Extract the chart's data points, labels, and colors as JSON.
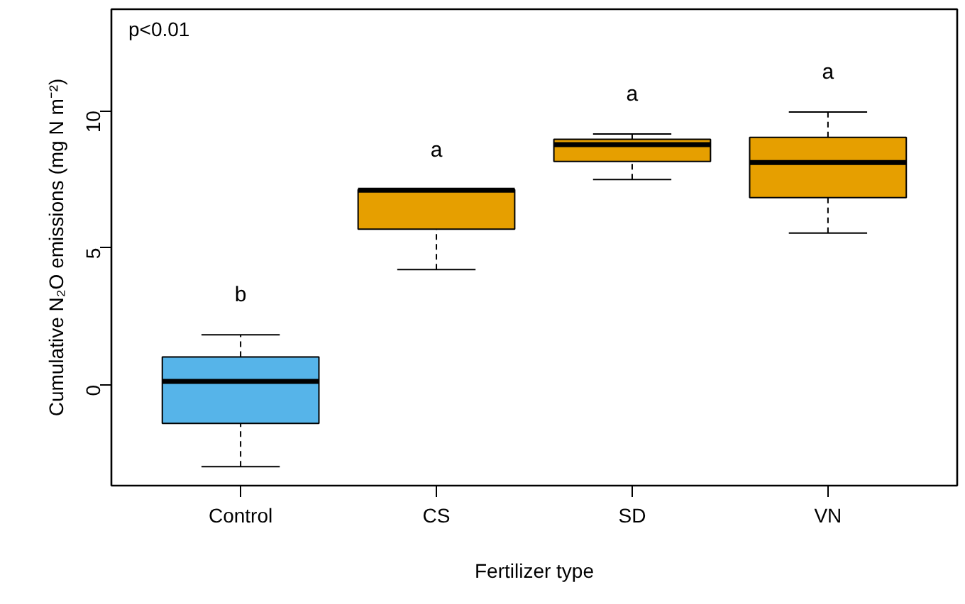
{
  "chart_data": {
    "type": "box",
    "xlabel": "Fertilizer type",
    "ylabel": "Cumulative N₂O emissions (mg N m⁻²)",
    "categories": [
      "Control",
      "CS",
      "SD",
      "VN"
    ],
    "boxes": [
      {
        "low": -2.98,
        "q1": -1.4,
        "median": 0.13,
        "q3": 1.02,
        "high": 1.83
      },
      {
        "low": 4.21,
        "q1": 5.68,
        "median": 7.1,
        "q3": 7.12,
        "high": 7.12
      },
      {
        "low": 7.49,
        "q1": 8.15,
        "median": 8.76,
        "q3": 8.96,
        "high": 9.15
      },
      {
        "low": 5.54,
        "q1": 6.83,
        "median": 8.11,
        "q3": 9.03,
        "high": 9.95
      }
    ],
    "colors": [
      "#56b4e9",
      "#e69f00",
      "#e69f00",
      "#e69f00"
    ],
    "ylim": [
      -3.67,
      13.7
    ],
    "yticks": [
      0,
      5,
      10
    ],
    "grid": false,
    "annotations": [
      "p<0.01",
      "b",
      "a",
      "a",
      "a"
    ]
  }
}
